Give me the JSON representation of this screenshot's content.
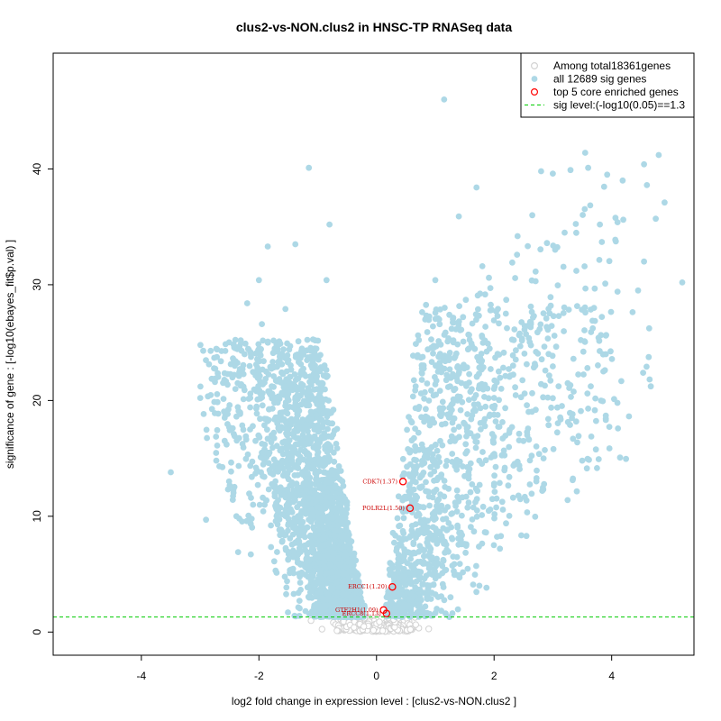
{
  "chart_data": {
    "type": "scatter",
    "title": "clus2-vs-NON.clus2 in HNSC-TP RNASeq data",
    "xlabel": "log2 fold change in expression level : [clus2-vs-NON.clus2 ]",
    "ylabel": "significance of gene : [-log10(ebayes_fit$p.val) ]",
    "xlim": [
      -5.5,
      5.4
    ],
    "ylim": [
      -2,
      50
    ],
    "xticks": [
      -4,
      -2,
      0,
      2,
      4
    ],
    "yticks": [
      0,
      10,
      20,
      30,
      40
    ],
    "grid": false,
    "legend_position": "top-right",
    "legend": [
      {
        "label": "Among total18361genes",
        "symbol": "open-circle",
        "color": "#d3d3d3"
      },
      {
        "label": "all 12689 sig genes",
        "symbol": "filled-circle",
        "color": "#add8e6"
      },
      {
        "label": "top 5 core enriched genes",
        "symbol": "open-circle",
        "color": "#ff0000"
      },
      {
        "label": "sig level:(-log10(0.05)==1.3",
        "symbol": "dashed-line",
        "color": "#00cc00"
      }
    ],
    "sig_level": 1.3,
    "colors": {
      "nonsig": "#d3d3d3",
      "sig": "#add8e6",
      "core": "#ff0000",
      "core_label": "#cc0000",
      "threshold": "#00cc00"
    },
    "series": [
      {
        "name": "top 5 core enriched genes",
        "points": [
          {
            "label": "CDK7(1.37)",
            "x": 0.45,
            "y": 13.0
          },
          {
            "label": "POLR2L(1.50)",
            "x": 0.57,
            "y": 10.7
          },
          {
            "label": "ERCC1(1.20)",
            "x": 0.27,
            "y": 3.9
          },
          {
            "label": "GTF2H1(1.09)",
            "x": 0.12,
            "y": 1.9
          },
          {
            "label": "ERCC8(1.13)",
            "x": 0.17,
            "y": 1.6
          }
        ]
      },
      {
        "name": "all 12689 sig genes",
        "points": [
          {
            "x": -3.5,
            "y": 13.8
          },
          {
            "x": -2.9,
            "y": 9.7
          },
          {
            "x": -2.75,
            "y": 18.9
          },
          {
            "x": -2.55,
            "y": 16.2
          },
          {
            "x": -2.5,
            "y": 19.6
          },
          {
            "x": -2.45,
            "y": 22.0
          },
          {
            "x": -2.4,
            "y": 23.4
          },
          {
            "x": -2.3,
            "y": 21.4
          },
          {
            "x": -2.2,
            "y": 28.4
          },
          {
            "x": -2.0,
            "y": 30.4
          },
          {
            "x": -1.85,
            "y": 33.3
          },
          {
            "x": -1.38,
            "y": 33.5
          },
          {
            "x": -1.15,
            "y": 40.1
          },
          {
            "x": -0.8,
            "y": 35.2
          },
          {
            "x": -0.85,
            "y": 30.4
          },
          {
            "x": -2.15,
            "y": 17.5
          },
          {
            "x": -2.05,
            "y": 14.2
          },
          {
            "x": -2.1,
            "y": 11.0
          },
          {
            "x": -1.95,
            "y": 26.6
          },
          {
            "x": -1.7,
            "y": 24.8
          },
          {
            "x": -1.55,
            "y": 27.9
          },
          {
            "x": 1.15,
            "y": 46.0
          },
          {
            "x": 1.7,
            "y": 38.4
          },
          {
            "x": 1.4,
            "y": 35.9
          },
          {
            "x": 2.8,
            "y": 39.8
          },
          {
            "x": 3.0,
            "y": 39.6
          },
          {
            "x": 3.3,
            "y": 39.9
          },
          {
            "x": 3.55,
            "y": 41.4
          },
          {
            "x": 3.6,
            "y": 40.1
          },
          {
            "x": 4.55,
            "y": 40.4
          },
          {
            "x": 4.8,
            "y": 41.2
          },
          {
            "x": 4.6,
            "y": 38.6
          },
          {
            "x": 4.9,
            "y": 37.1
          },
          {
            "x": 4.75,
            "y": 35.7
          },
          {
            "x": 4.1,
            "y": 35.4
          },
          {
            "x": 3.8,
            "y": 35.2
          },
          {
            "x": 4.55,
            "y": 32.0
          },
          {
            "x": 5.2,
            "y": 30.2
          },
          {
            "x": 4.45,
            "y": 29.5
          },
          {
            "x": 4.1,
            "y": 29.4
          },
          {
            "x": 3.9,
            "y": 25.6
          },
          {
            "x": 3.9,
            "y": 24.0
          },
          {
            "x": 3.9,
            "y": 18.7
          },
          {
            "x": 3.6,
            "y": 19.3
          },
          {
            "x": 3.25,
            "y": 11.4
          },
          {
            "x": 2.55,
            "y": 8.3
          },
          {
            "x": 1.75,
            "y": 4.0
          },
          {
            "x": 2.1,
            "y": 7.2
          },
          {
            "x": 2.4,
            "y": 34.2
          },
          {
            "x": 2.65,
            "y": 36.0
          },
          {
            "x": 1.0,
            "y": 30.4
          },
          {
            "x": 1.8,
            "y": 31.6
          },
          {
            "x": 2.2,
            "y": 27.5
          },
          {
            "x": 2.7,
            "y": 23.0
          },
          {
            "x": 3.1,
            "y": 27.3
          },
          {
            "x": 3.4,
            "y": 31.2
          },
          {
            "x": 2.9,
            "y": 33.6
          },
          {
            "x": 3.2,
            "y": 34.5
          },
          {
            "x": 3.7,
            "y": 28.0
          },
          {
            "x": 2.0,
            "y": 21.0
          },
          {
            "x": 2.5,
            "y": 16.5
          },
          {
            "x": 3.0,
            "y": 20.2
          },
          {
            "x": 3.35,
            "y": 23.6
          }
        ]
      }
    ]
  }
}
